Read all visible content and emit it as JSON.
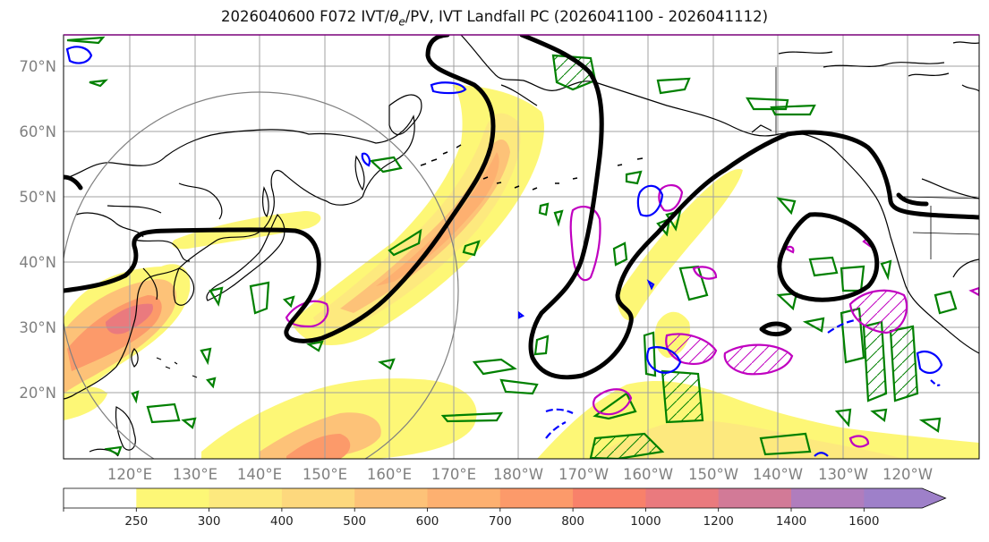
{
  "title": {
    "prefix": "2026040600 F072 IVT/",
    "theta": "θ",
    "sub": "e",
    "suffix": "/PV, IVT Landfall PC (2026041100 - 2026041112)"
  },
  "axes": {
    "lat_labels": [
      "70°N",
      "60°N",
      "50°N",
      "40°N",
      "30°N",
      "20°N"
    ],
    "lon_labels": [
      "120°E",
      "130°E",
      "140°E",
      "150°E",
      "160°E",
      "170°E",
      "180°W",
      "170°W",
      "160°W",
      "150°W",
      "140°W",
      "130°W",
      "120°W"
    ]
  },
  "colorbar": {
    "levels": [
      "250",
      "300",
      "400",
      "500",
      "600",
      "700",
      "800",
      "1000",
      "1200",
      "1400",
      "1600"
    ],
    "colors": [
      "#ffffff",
      "#fdf776",
      "#fde97e",
      "#fdd87d",
      "#fdc278",
      "#fdb070",
      "#fc9a6a",
      "#f8816a",
      "#ea7a7e",
      "#d27a97",
      "#b07dbd",
      "#9e80c9"
    ]
  },
  "colors": {
    "ivt_fill": "#fd9a66",
    "pc_contour": "#000000",
    "pv_positive": "#0000ff",
    "pv_negative": "#c000c0",
    "theta_e": "#008000",
    "coast": "#000000",
    "grid": "#a0a0a0",
    "circle": "#808080"
  }
}
